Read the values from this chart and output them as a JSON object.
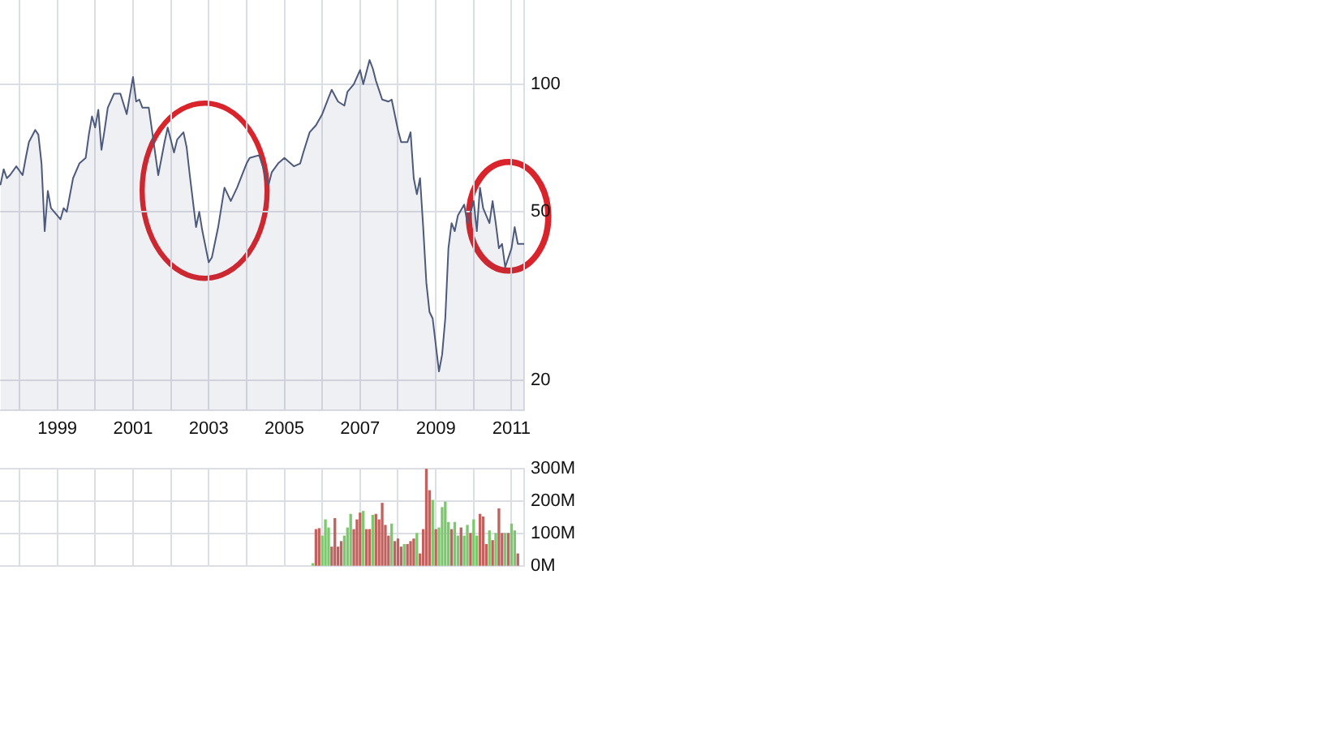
{
  "chart_data": [
    {
      "type": "area",
      "color": "#4d5a7c",
      "log": true,
      "grid": true,
      "ylim": [
        17,
        158
      ],
      "yticks": [
        20,
        50,
        100
      ],
      "xlim": [
        "1997-06-26",
        "2011-05"
      ],
      "xticks": [
        {
          "value": "1998",
          "label": null
        },
        "1999",
        {
          "value": "2000",
          "label": null
        },
        "2001",
        {
          "value": "2002",
          "label": null
        },
        "2003",
        {
          "value": "2004",
          "label": null
        },
        "2005",
        {
          "value": "2006",
          "label": null
        },
        "2007",
        {
          "value": "2008",
          "label": null
        },
        "2009",
        {
          "value": "2010",
          "label": null
        },
        "2011"
      ],
      "x": [
        "1997-07",
        "1997-08",
        "1997-09",
        "1997-10",
        "1997-12",
        "1998-02",
        "1998-03",
        "1998-04",
        "1998-06",
        "1998-07",
        "1998-08",
        "1998-09",
        "1998-10",
        "1998-11",
        "1999-02",
        "1999-03",
        "1999-04",
        "1999-06",
        "1999-08",
        "1999-10",
        "1999-11",
        "1999-12",
        "2000-01",
        "2000-02",
        "2000-03",
        "2000-04",
        "2000-05",
        "2000-07",
        "2000-09",
        "2000-11",
        "2001-01",
        "2001-02",
        "2001-03",
        "2001-04",
        "2001-06",
        "2001-07",
        "2001-09",
        "2001-11",
        "2001-12",
        "2002-02",
        "2002-03",
        "2002-05",
        "2002-06",
        "2002-07",
        "2002-09",
        "2002-10",
        "2002-11",
        "2003-01",
        "2003-02",
        "2003-04",
        "2003-06",
        "2003-08",
        "2003-10",
        "2004-01",
        "2004-02",
        "2004-05",
        "2004-08",
        "2004-09",
        "2004-11",
        "2005-01",
        "2005-04",
        "2005-06",
        "2005-07",
        "2005-09",
        "2005-11",
        "2006-01",
        "2006-03",
        "2006-04",
        "2006-06",
        "2006-08",
        "2006-09",
        "2006-11",
        "2007-01",
        "2007-02",
        "2007-04",
        "2007-05",
        "2007-06",
        "2007-08",
        "2007-10",
        "2007-11",
        "2008-01",
        "2008-02",
        "2008-04",
        "2008-05",
        "2008-06",
        "2008-07",
        "2008-08",
        "2008-09",
        "2008-10",
        "2008-11",
        "2008-12",
        "2009-02",
        "2009-03",
        "2009-04",
        "2009-05",
        "2009-06",
        "2009-07",
        "2009-08",
        "2009-10",
        "2009-11",
        "2010-01",
        "2010-02",
        "2010-03",
        "2010-04",
        "2010-06",
        "2010-07",
        "2010-08",
        "2010-09",
        "2010-10",
        "2010-11",
        "2011-01",
        "2011-02",
        "2011-03",
        "2011-05"
      ],
      "values": [
        58,
        63,
        60,
        61,
        64,
        61,
        67,
        73,
        78,
        76,
        65,
        45,
        56,
        51,
        48,
        51,
        50,
        60,
        65,
        67,
        76,
        84,
        79,
        87,
        70,
        78,
        88,
        95,
        95,
        85,
        104,
        91,
        92,
        88,
        88,
        78,
        61,
        73,
        79,
        69,
        74,
        77,
        71,
        61,
        46,
        50,
        45,
        38,
        39,
        46,
        57,
        53,
        57,
        65,
        67,
        68,
        58,
        62,
        65,
        67,
        64,
        65,
        69,
        77,
        80,
        85,
        93,
        97,
        91,
        89,
        96,
        100,
        108,
        100,
        114,
        109,
        102,
        92,
        91,
        92,
        78,
        73,
        73,
        77,
        60,
        55,
        60,
        46,
        34,
        29,
        28,
        21,
        23,
        28,
        41,
        47,
        45,
        49,
        52,
        47,
        53,
        45,
        57,
        51,
        47,
        53,
        47,
        41,
        42,
        37,
        41,
        46,
        42,
        42
      ]
    },
    {
      "type": "bar",
      "grid": true,
      "tick_labels": "y",
      "ylim": [
        0,
        300
      ],
      "yticks": [
        {
          "value": 0,
          "label": "0M"
        },
        {
          "value": 100,
          "label": "100M"
        },
        {
          "value": 200,
          "label": "200M"
        },
        {
          "value": 300,
          "label": "300M"
        }
      ],
      "xlim": [
        "1997-06-26",
        "2011-05"
      ],
      "xticks": [
        {
          "value": "1998",
          "label": null
        },
        "1999",
        {
          "value": "2000",
          "label": null
        },
        "2001",
        {
          "value": "2002",
          "label": null
        },
        "2003",
        {
          "value": "2004",
          "label": null
        },
        "2005",
        {
          "value": "2006",
          "label": null
        },
        "2007",
        {
          "value": "2008",
          "label": null
        },
        "2009",
        {
          "value": "2010",
          "label": null
        },
        "2011"
      ],
      "x": [
        "2005-10",
        "2005-11",
        "2005-12",
        "2006-01",
        "2006-02",
        "2006-03",
        "2006-04",
        "2006-05",
        "2006-06",
        "2006-07",
        "2006-08",
        "2006-09",
        "2006-10",
        "2006-11",
        "2006-12",
        "2007-01",
        "2007-02",
        "2007-03",
        "2007-04",
        "2007-05",
        "2007-06",
        "2007-07",
        "2007-08",
        "2007-09",
        "2007-10",
        "2007-11",
        "2007-12",
        "2008-01",
        "2008-02",
        "2008-03",
        "2008-04",
        "2008-05",
        "2008-06",
        "2008-07",
        "2008-08",
        "2008-09",
        "2008-10",
        "2008-11",
        "2008-12",
        "2009-01",
        "2009-02",
        "2009-03",
        "2009-04",
        "2009-05",
        "2009-06",
        "2009-07",
        "2009-08",
        "2009-09",
        "2009-10",
        "2009-11",
        "2009-12",
        "2010-01",
        "2010-02",
        "2010-03",
        "2010-04",
        "2010-05",
        "2010-06",
        "2010-07",
        "2010-08",
        "2010-09",
        "2010-10",
        "2010-11",
        "2010-12",
        "2011-01",
        "2011-02",
        "2011-03"
      ],
      "values": [
        7,
        112,
        115,
        92,
        142,
        117,
        58,
        146,
        58,
        75,
        92,
        117,
        159,
        112,
        142,
        163,
        168,
        112,
        112,
        156,
        159,
        142,
        193,
        125,
        92,
        129,
        75,
        83,
        58,
        66,
        66,
        75,
        83,
        100,
        37,
        112,
        298,
        232,
        202,
        112,
        117,
        180,
        197,
        134,
        112,
        134,
        92,
        117,
        92,
        125,
        100,
        142,
        92,
        159,
        151,
        66,
        108,
        78,
        100,
        176,
        100,
        100,
        100,
        129,
        108,
        37
      ],
      "colors": [
        "#7bc96c",
        "#c0625f",
        "#c0625f",
        "#7bc96c",
        "#7bc96c",
        "#7bc96c",
        "#c0625f",
        "#c0625f",
        "#c0625f",
        "#c0625f",
        "#7bc96c",
        "#7bc96c",
        "#7bc96c",
        "#c0625f",
        "#c0625f",
        "#c0625f",
        "#7bc96c",
        "#c0625f",
        "#c0625f",
        "#7bc96c",
        "#c0625f",
        "#c0625f",
        "#c0625f",
        "#c0625f",
        "#c0625f",
        "#7bc96c",
        "#c0625f",
        "#c0625f",
        "#c0625f",
        "#7bc96c",
        "#c0625f",
        "#c0625f",
        "#c0625f",
        "#7bc96c",
        "#c0625f",
        "#c0625f",
        "#c0625f",
        "#c0625f",
        "#7bc96c",
        "#c0625f",
        "#7bc96c",
        "#7bc96c",
        "#7bc96c",
        "#7bc96c",
        "#c0625f",
        "#7bc96c",
        "#7bc96c",
        "#c0625f",
        "#7bc96c",
        "#7bc96c",
        "#c0625f",
        "#7bc96c",
        "#7bc96c",
        "#c0625f",
        "#c0625f",
        "#c0625f",
        "#7bc96c",
        "#c0625f",
        "#7bc96c",
        "#c0625f",
        "#c0625f",
        "#7bc96c",
        "#c0625f",
        "#7bc96c",
        "#7bc96c",
        "#c0625f"
      ]
    }
  ]
}
